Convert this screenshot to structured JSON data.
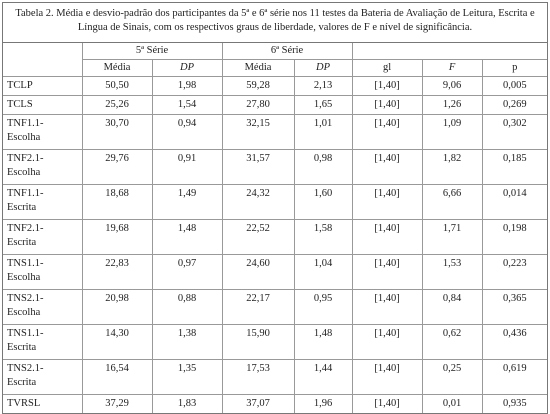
{
  "caption": "Tabela 2. Média e desvio-padrão dos participantes da 5ª e 6ª série nos 11 testes da Bateria de Avaliação de Leitura, Escrita e Língua de Sinais, com os respectivos graus de liberdade, valores de F e nível de significância.",
  "table": {
    "groups": [
      "5ª Série",
      "6ª Série"
    ],
    "columns": [
      "Média",
      "DP",
      "Média",
      "DP",
      "gl",
      "F",
      "p"
    ],
    "rows": [
      [
        "TCLP",
        "50,50",
        "1,98",
        "59,28",
        "2,13",
        "[1,40]",
        "9,06",
        "0,005"
      ],
      [
        "TCLS",
        "25,26",
        "1,54",
        "27,80",
        "1,65",
        "[1,40]",
        "1,26",
        "0,269"
      ],
      [
        "TNF1.1-Escolha",
        "30,70",
        "0,94",
        "32,15",
        "1,01",
        "[1,40]",
        "1,09",
        "0,302"
      ],
      [
        "TNF2.1-Escolha",
        "29,76",
        "0,91",
        "31,57",
        "0,98",
        "[1,40]",
        "1,82",
        "0,185"
      ],
      [
        "TNF1.1-Escrita",
        "18,68",
        "1,49",
        "24,32",
        "1,60",
        "[1,40]",
        "6,66",
        "0,014"
      ],
      [
        "TNF2.1-Escrita",
        "19,68",
        "1,48",
        "22,52",
        "1,58",
        "[1,40]",
        "1,71",
        "0,198"
      ],
      [
        "TNS1.1-Escolha",
        "22,83",
        "0,97",
        "24,60",
        "1,04",
        "[1,40]",
        "1,53",
        "0,223"
      ],
      [
        "TNS2.1-Escolha",
        "20,98",
        "0,88",
        "22,17",
        "0,95",
        "[1,40]",
        "0,84",
        "0,365"
      ],
      [
        "TNS1.1-Escrita",
        "14,30",
        "1,38",
        "15,90",
        "1,48",
        "[1,40]",
        "0,62",
        "0,436"
      ],
      [
        "TNS2.1-Escrita",
        "16,54",
        "1,35",
        "17,53",
        "1,44",
        "[1,40]",
        "0,25",
        "0,619"
      ],
      [
        "TVRSL",
        "37,29",
        "1,83",
        "37,07",
        "1,96",
        "[1,40]",
        "0,01",
        "0,935"
      ]
    ]
  }
}
